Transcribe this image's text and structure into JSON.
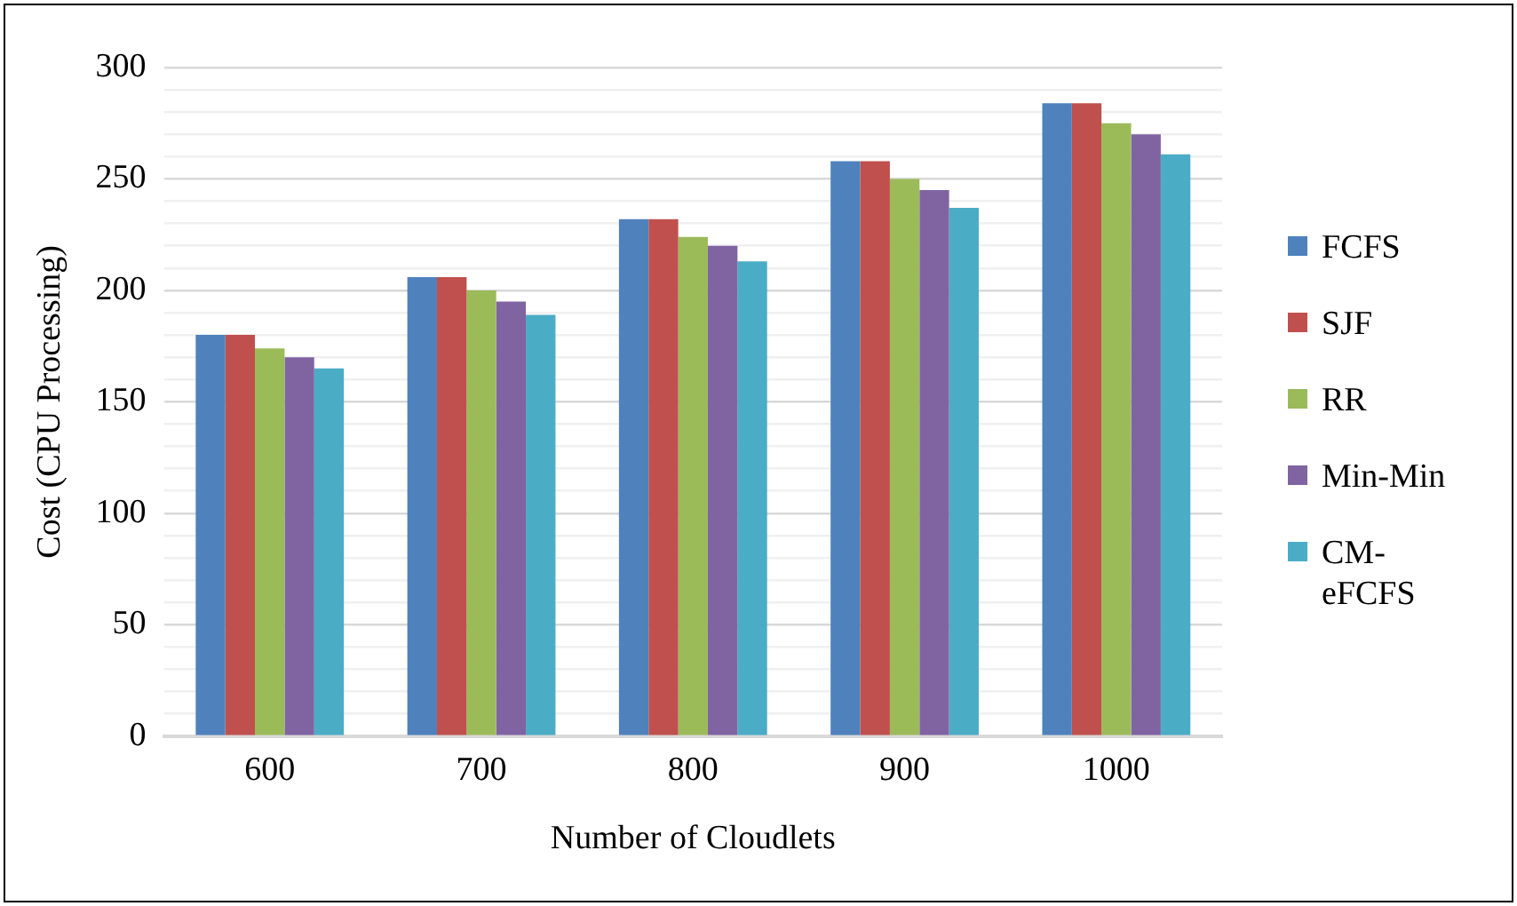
{
  "chart_data": {
    "type": "bar",
    "xlabel": "Number of Cloudlets",
    "ylabel": "Cost (CPU Processing)",
    "categories": [
      "600",
      "700",
      "800",
      "900",
      "1000"
    ],
    "series": [
      {
        "name": "FCFS",
        "color": "#4f81bd",
        "values": [
          180,
          206,
          232,
          258,
          284
        ]
      },
      {
        "name": "SJF",
        "color": "#c0504d",
        "values": [
          180,
          206,
          232,
          258,
          284
        ]
      },
      {
        "name": "RR",
        "color": "#9bbb59",
        "values": [
          174,
          200,
          224,
          250,
          275
        ]
      },
      {
        "name": "Min-Min",
        "color": "#8064a2",
        "values": [
          170,
          195,
          220,
          245,
          270
        ]
      },
      {
        "name": "CM-eFCFS",
        "color": "#4bacc6",
        "values": [
          165,
          189,
          213,
          237,
          261
        ]
      }
    ],
    "ylim": [
      0,
      300
    ],
    "yticks": [
      0,
      {
        "value": 10,
        "label": null
      },
      {
        "value": 20,
        "label": null
      },
      {
        "value": 30,
        "label": null
      },
      {
        "value": 40,
        "label": null
      },
      50,
      {
        "value": 60,
        "label": null
      },
      {
        "value": 70,
        "label": null
      },
      {
        "value": 80,
        "label": null
      },
      {
        "value": 90,
        "label": null
      },
      100,
      {
        "value": 110,
        "label": null
      },
      {
        "value": 120,
        "label": null
      },
      {
        "value": 130,
        "label": null
      },
      {
        "value": 140,
        "label": null
      },
      150,
      {
        "value": 160,
        "label": null
      },
      {
        "value": 170,
        "label": null
      },
      {
        "value": 180,
        "label": null
      },
      {
        "value": 190,
        "label": null
      },
      200,
      {
        "value": 210,
        "label": null
      },
      {
        "value": 220,
        "label": null
      },
      {
        "value": 230,
        "label": null
      },
      {
        "value": 240,
        "label": null
      },
      250,
      {
        "value": 260,
        "label": null
      },
      {
        "value": 270,
        "label": null
      },
      {
        "value": 280,
        "label": null
      },
      {
        "value": 290,
        "label": null
      },
      300
    ],
    "grid": "y",
    "legend": "right"
  }
}
